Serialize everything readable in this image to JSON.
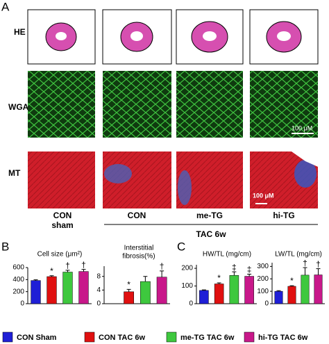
{
  "panels": {
    "a": "A",
    "b": "B",
    "c": "C"
  },
  "panel_a": {
    "rows": [
      "HE",
      "WGA",
      "MT"
    ],
    "columns": [
      [
        "CON",
        "sham"
      ],
      [
        "CON"
      ],
      [
        "me-TG"
      ],
      [
        "hi-TG"
      ]
    ],
    "group_label": "TAC 6w",
    "scale_bars": [
      "100 μM",
      "100 μM"
    ]
  },
  "legend": [
    {
      "name": "CON Sham",
      "color": "#1f1fd6"
    },
    {
      "name": "CON TAC 6w",
      "color": "#e01010"
    },
    {
      "name": "me-TG TAC 6w",
      "color": "#3ec83e"
    },
    {
      "name": "hi-TG TAC 6w",
      "color": "#c8188a"
    }
  ],
  "chart_data": [
    {
      "type": "bar",
      "title": "Cell size (μm²)",
      "values": [
        385,
        450,
        525,
        535
      ],
      "errors": [
        12,
        15,
        30,
        35
      ],
      "annotations": [
        null,
        "*",
        "†",
        "†"
      ],
      "ylim": [
        0,
        600
      ],
      "yticks": [
        0,
        200,
        400,
        600
      ]
    },
    {
      "type": "bar",
      "title": [
        "Interstitial",
        "fibrosis(%)"
      ],
      "values": [
        0,
        3.5,
        6.5,
        7.8
      ],
      "errors": [
        0,
        0.7,
        1.5,
        1.8
      ],
      "annotations": [
        null,
        "*",
        null,
        "†"
      ],
      "ylim": [
        0,
        11
      ],
      "yticks": [
        0,
        4,
        8
      ]
    },
    {
      "type": "bar",
      "title": "HW/TL (mg/cm)",
      "values": [
        75,
        112,
        160,
        155
      ],
      "errors": [
        3,
        6,
        20,
        12
      ],
      "annotations": [
        null,
        "*",
        "‡",
        "‡"
      ],
      "ylim": [
        0,
        220
      ],
      "yticks": [
        0,
        100,
        200
      ]
    },
    {
      "type": "bar",
      "title": "LW/TL (mg/cm)",
      "values": [
        100,
        140,
        230,
        232
      ],
      "errors": [
        5,
        5,
        60,
        50
      ],
      "annotations": [
        null,
        "*",
        "†",
        "†"
      ],
      "ylim": [
        0,
        330
      ],
      "yticks": [
        0,
        100,
        200,
        300
      ]
    }
  ]
}
